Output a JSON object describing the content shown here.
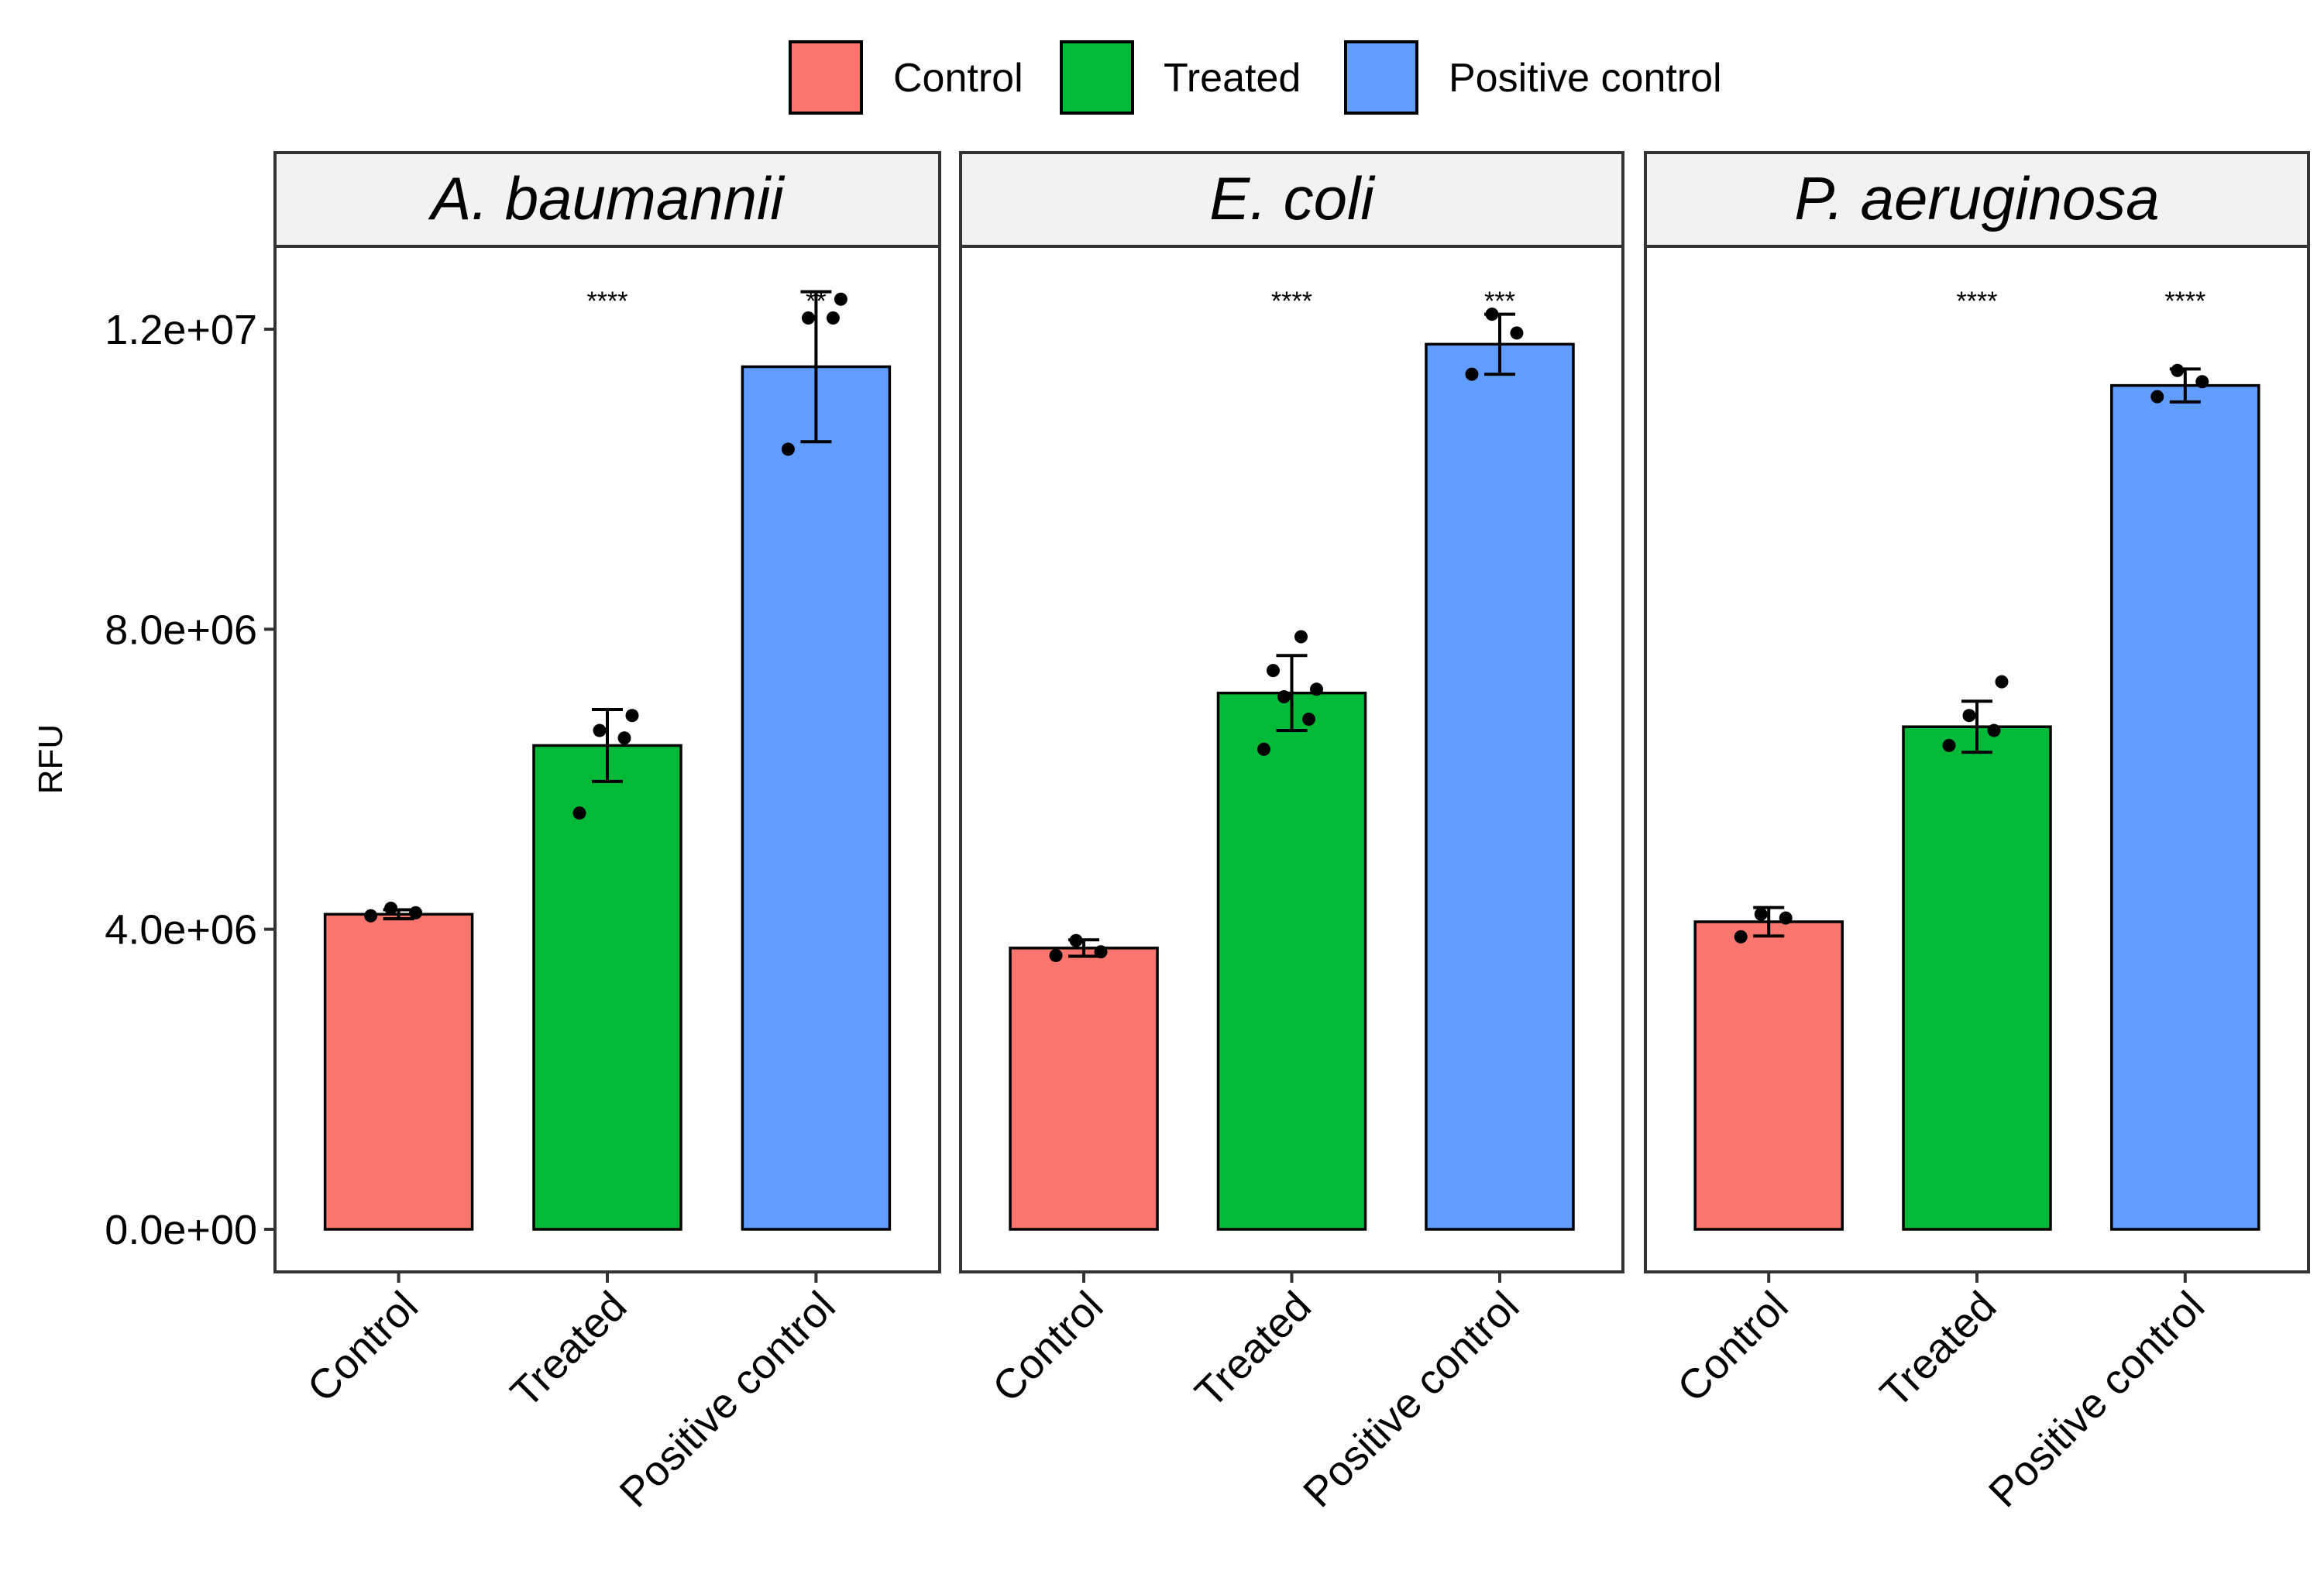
{
  "chart_data": {
    "type": "bar",
    "title": "",
    "xlabel": "",
    "ylabel": "RFU",
    "ylim": [
      0,
      13500000
    ],
    "yticks": [
      0,
      4000000,
      8000000,
      12000000
    ],
    "ytick_labels": [
      "0.0e+00",
      "4.0e+06",
      "8.0e+06",
      "1.2e+07"
    ],
    "categories": [
      "Control",
      "Treated",
      "Positive control"
    ],
    "colors": {
      "Control": "#F8766D",
      "Treated": "#00BA38",
      "Positive control": "#619CFF"
    },
    "legend": {
      "position": "top",
      "entries": [
        "Control",
        "Treated",
        "Positive control"
      ]
    },
    "panels": [
      {
        "label": "A. baumannii",
        "bars": [
          {
            "category": "Control",
            "value": 4200000,
            "error": 60000,
            "points": [
              4180000,
              4220000,
              4280000
            ],
            "sig": ""
          },
          {
            "category": "Treated",
            "value": 6450000,
            "error": 480000,
            "points": [
              5550000,
              6550000,
              6650000,
              6850000
            ],
            "sig": "****"
          },
          {
            "category": "Positive control",
            "value": 11500000,
            "error": 1000000,
            "points": [
              10400000,
              12150000,
              12150000,
              12400000
            ],
            "sig": "**"
          }
        ]
      },
      {
        "label": "E. coli",
        "bars": [
          {
            "category": "Control",
            "value": 3750000,
            "error": 110000,
            "points": [
              3650000,
              3700000,
              3850000
            ],
            "sig": ""
          },
          {
            "category": "Treated",
            "value": 7150000,
            "error": 500000,
            "points": [
              6400000,
              6800000,
              7100000,
              7200000,
              7450000,
              7900000
            ],
            "sig": "****"
          },
          {
            "category": "Positive control",
            "value": 11800000,
            "error": 400000,
            "points": [
              11400000,
              11950000,
              12200000
            ],
            "sig": "***"
          }
        ]
      },
      {
        "label": "P. aeruginosa",
        "bars": [
          {
            "category": "Control",
            "value": 4100000,
            "error": 190000,
            "points": [
              3900000,
              4150000,
              4200000
            ],
            "sig": ""
          },
          {
            "category": "Treated",
            "value": 6700000,
            "error": 340000,
            "points": [
              6450000,
              6650000,
              6850000,
              7300000
            ],
            "sig": "****"
          },
          {
            "category": "Positive control",
            "value": 11250000,
            "error": 220000,
            "points": [
              11100000,
              11300000,
              11450000
            ],
            "sig": "****"
          }
        ]
      }
    ]
  }
}
